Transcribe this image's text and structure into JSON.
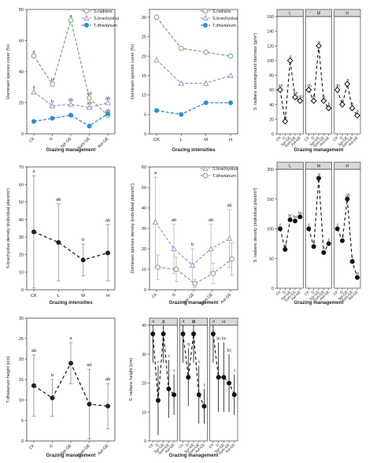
{
  "chart_data": [
    {
      "type": "line",
      "xlabel": "Grazing management",
      "ylabel": "Dominant species cover (%)",
      "categories": [
        "CK",
        "G",
        "Spr-GE",
        "Sum-GE",
        "Aut-GE"
      ],
      "ylim": [
        0,
        80
      ],
      "yticks": [
        0,
        20,
        40,
        60,
        80
      ],
      "legend": "top-right",
      "series": [
        {
          "name": "S.radians",
          "color": "#7fae7f",
          "dash": "4,2",
          "marker": "circle-open",
          "values": [
            50,
            32,
            73,
            23,
            12
          ],
          "letters": [
            "a",
            "b",
            "a",
            "cd",
            "ab"
          ]
        },
        {
          "name": "S.brachyolus",
          "color": "#a79bd0",
          "dash": "4,2",
          "marker": "triangle-open",
          "values": [
            27,
            18,
            19,
            17,
            20
          ],
          "letters": [
            "a",
            "b",
            "ab",
            "ab",
            "ab"
          ]
        },
        {
          "name": "T.dhwianum",
          "color": "#2b8fd0",
          "dash": "4,2",
          "marker": "circle-filled",
          "values": [
            8,
            10,
            12,
            5,
            13
          ],
          "letters": [
            "",
            "",
            "",
            "",
            ""
          ]
        }
      ]
    },
    {
      "type": "line",
      "xlabel": "Grazing intensities",
      "ylabel": "Dominant species cover (%)",
      "categories": [
        "CK",
        "L",
        "M",
        "H"
      ],
      "ylim": [
        0,
        32
      ],
      "yticks": [
        0,
        5,
        10,
        15,
        20,
        25,
        30
      ],
      "legend": "top-right",
      "series": [
        {
          "name": "S.radians",
          "color": "#7fae7f",
          "dash": "4,2",
          "marker": "circle-open",
          "values": [
            30,
            22,
            21,
            20
          ]
        },
        {
          "name": "S.brachyolus",
          "color": "#a79bd0",
          "dash": "4,2",
          "marker": "triangle-open",
          "values": [
            19,
            13,
            13,
            15
          ]
        },
        {
          "name": "T.dhwianum",
          "color": "#2b8fd0",
          "dash": "4,2",
          "marker": "circle-filled",
          "values": [
            6,
            5,
            8,
            8
          ]
        }
      ]
    },
    {
      "type": "line",
      "ylabel": "S. radians aboveground biomass (g/m²)",
      "xlabel": "Grazing management",
      "facets": [
        "L",
        "M",
        "H"
      ],
      "categories": [
        "CK",
        "G",
        "Spr-GE",
        "Sum-GE",
        "Aut-GE"
      ],
      "ylim": [
        0,
        160
      ],
      "yticks": [
        0,
        20,
        40,
        60,
        80,
        100,
        120,
        140,
        160
      ],
      "panels": [
        {
          "values": [
            60,
            17,
            100,
            50,
            45
          ],
          "letters": [
            "ab",
            "b",
            "a",
            "ab",
            "ab"
          ]
        },
        {
          "values": [
            60,
            45,
            120,
            45,
            35
          ],
          "letters": [
            "ab",
            "b",
            "a",
            "b",
            "b"
          ]
        },
        {
          "values": [
            60,
            40,
            68,
            35,
            25
          ],
          "letters": [
            "ab",
            "b",
            "a",
            "b",
            "b"
          ]
        }
      ]
    },
    {
      "type": "line",
      "xlabel": "Grazing intensities",
      "ylabel": "S.brachyolus density (individual plant/m²)",
      "categories": [
        "CK",
        "L",
        "M",
        "H"
      ],
      "ylim": [
        0,
        70
      ],
      "yticks": [
        0,
        10,
        20,
        30,
        40,
        50,
        60,
        70
      ],
      "series": [
        {
          "name": "",
          "color": "#222222",
          "dash": "4,3",
          "marker": "circle-filled",
          "values": [
            33,
            27,
            17,
            21
          ],
          "err": [
            32,
            22,
            9,
            16
          ],
          "letters": [
            "a",
            "ab",
            "b",
            "ab"
          ]
        }
      ]
    },
    {
      "type": "line",
      "xlabel": "Grazing management",
      "ylabel": "Dominant species density (individual plant/m²)",
      "categories": [
        "CK",
        "G",
        "Spr-GE",
        "Sum-GE",
        "Aut-GE"
      ],
      "ylim": [
        0,
        60
      ],
      "yticks": [
        0,
        10,
        20,
        30,
        40,
        50,
        60
      ],
      "legend": "top-right",
      "series": [
        {
          "name": "S.brachyolus",
          "color": "#a79bd0",
          "dash": "4,2",
          "marker": "triangle-open",
          "values": [
            33,
            20,
            12,
            20,
            25
          ],
          "err": [
            22,
            12,
            8,
            12,
            14
          ],
          "letters": [
            "a",
            "ab",
            "b",
            "ab",
            "ab"
          ]
        },
        {
          "name": "T.dhwianum",
          "color": "#7fae7f",
          "dash": "4,2",
          "marker": "circle-open",
          "values": [
            11,
            10,
            3,
            8,
            15
          ],
          "err": [
            6,
            6,
            2,
            5,
            8
          ],
          "letters": [
            "",
            "",
            "",
            "",
            ""
          ]
        }
      ]
    },
    {
      "type": "line",
      "ylabel": "S. radians density (individual plant/m²)",
      "xlabel": "Grazing management",
      "facets": [
        "L",
        "M",
        "H"
      ],
      "categories": [
        "CK",
        "G",
        "Spr-GE",
        "Sum-GE",
        "Aut-GE"
      ],
      "ylim": [
        0,
        200
      ],
      "yticks": [
        0,
        50,
        100,
        150,
        200
      ],
      "panels": [
        {
          "values": [
            100,
            65,
            115,
            113,
            120
          ],
          "letters": [
            "c",
            "d",
            "bc",
            "bc",
            "bc"
          ]
        },
        {
          "values": [
            100,
            70,
            185,
            60,
            75
          ],
          "letters": [
            "c",
            "c",
            "a",
            "c",
            "c"
          ]
        },
        {
          "values": [
            100,
            80,
            150,
            45,
            18
          ],
          "letters": [
            "c",
            "c",
            "ab",
            "c",
            "d"
          ]
        }
      ]
    },
    {
      "type": "line",
      "xlabel": "Grazing management",
      "ylabel": "T.dhwianum height (cm)",
      "categories": [
        "CK",
        "G",
        "Spr-GE",
        "Sum-GE",
        "Aut-GE"
      ],
      "ylim": [
        0,
        30
      ],
      "yticks": [
        0,
        5,
        10,
        15,
        20,
        25,
        30
      ],
      "series": [
        {
          "name": "",
          "color": "#222222",
          "dash": "4,3",
          "marker": "circle-filled",
          "values": [
            13.5,
            10.5,
            19,
            9,
            8.5
          ],
          "err": [
            7.5,
            4.5,
            5,
            8.5,
            5.5
          ],
          "letters": [
            "ab",
            "b",
            "a",
            "ab",
            "ab"
          ]
        }
      ]
    },
    {
      "type": "line",
      "ylabel": "S. radians height (cm)",
      "xlabel": "Grazing management",
      "facets": [
        "L",
        "M",
        "H"
      ],
      "categories": [
        "CK",
        "G",
        "Spr-GE",
        "Sum-GE",
        "Aut-GE"
      ],
      "ylim": [
        0,
        40
      ],
      "yticks": [
        0,
        10,
        20,
        30,
        40
      ],
      "panels": [
        {
          "values": [
            37,
            14,
            37,
            18,
            16
          ],
          "err": [
            10,
            12,
            10,
            10,
            7
          ],
          "letters": [
            "a",
            "c",
            "a",
            "c",
            "c"
          ]
        },
        {
          "values": [
            37,
            22,
            37,
            16,
            12
          ],
          "err": [
            10,
            10,
            10,
            10,
            6
          ],
          "letters": [
            "a",
            "b",
            "a",
            "c",
            "c"
          ]
        },
        {
          "values": [
            37,
            22,
            22,
            20,
            16
          ],
          "err": [
            10,
            12,
            12,
            10,
            7
          ],
          "letters": [
            "a",
            "bc",
            "bc",
            "bc",
            "c"
          ]
        }
      ]
    }
  ]
}
